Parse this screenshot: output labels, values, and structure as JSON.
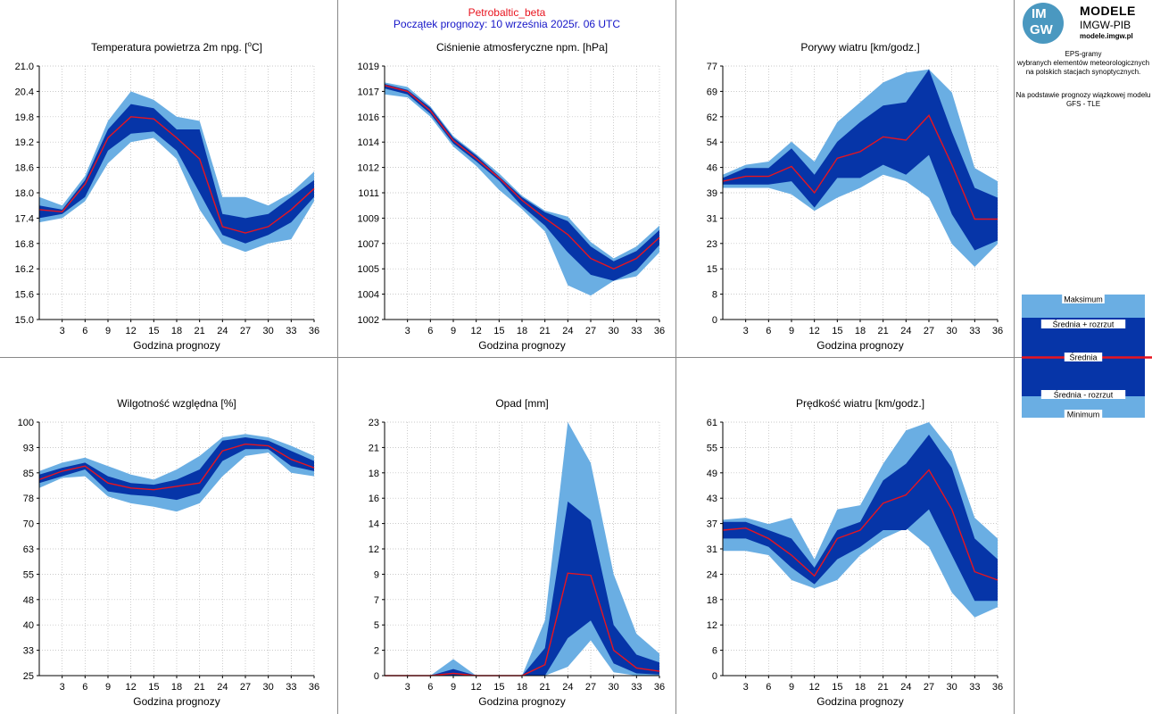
{
  "header": {
    "station": "Petrobaltic_beta",
    "run": "Początek prognozy: 10 września 2025r. 06 UTC"
  },
  "logo": {
    "mark_top": "IM",
    "mark_bottom": "GW",
    "title": "MODELE",
    "subtitle": "IMGW-PIB",
    "site": "modele.imgw.pl"
  },
  "side_info": {
    "lines1": [
      "EPS-gramy",
      "wybranych elementów meteorologicznych",
      "na polskich stacjach  synoptycznych."
    ],
    "lines2": [
      "Na podstawie prognozy wiązkowej modelu",
      "GFS - TLE"
    ]
  },
  "legend": {
    "max": "Maksimum",
    "mean_plus": "Średnia + rozrzut",
    "mean": "Średnia",
    "mean_minus": "Średnia - rozrzut",
    "min": "Minimum"
  },
  "colors": {
    "outer_band": "#6aaee3",
    "inner_band": "#0635a8",
    "mean_line": "#e8141f",
    "grid": "#b8b8b8",
    "divider": "#888888"
  },
  "chart_data": [
    {
      "type": "area",
      "title": "Temperatura powietrza 2m npg. [°C]",
      "xlabel": "Godzina prognozy",
      "x": [
        0,
        3,
        6,
        9,
        12,
        15,
        18,
        21,
        24,
        27,
        30,
        33,
        36
      ],
      "xticks": [
        "3",
        "6",
        "9",
        "12",
        "15",
        "18",
        "21",
        "24",
        "27",
        "30",
        "33",
        "36"
      ],
      "ylim": [
        15.0,
        21.0
      ],
      "yticks": [
        "15.0",
        "15.6",
        "16.2",
        "16.8",
        "17.4",
        "18.0",
        "18.6",
        "19.2",
        "19.8",
        "20.4",
        "21.0"
      ],
      "max": [
        17.9,
        17.7,
        18.4,
        19.7,
        20.4,
        20.2,
        19.8,
        19.7,
        17.9,
        17.9,
        17.7,
        18.0,
        18.5
      ],
      "mean_plus": [
        17.7,
        17.6,
        18.3,
        19.5,
        20.1,
        20.0,
        19.5,
        19.5,
        17.5,
        17.4,
        17.5,
        17.9,
        18.3
      ],
      "mean": [
        17.6,
        17.55,
        18.2,
        19.3,
        19.8,
        19.75,
        19.3,
        18.8,
        17.2,
        17.05,
        17.2,
        17.6,
        18.1
      ],
      "mean_minus": [
        17.4,
        17.5,
        17.9,
        19.0,
        19.4,
        19.45,
        19.0,
        18.0,
        17.0,
        16.8,
        17.0,
        17.3,
        17.9
      ],
      "min": [
        17.3,
        17.4,
        17.8,
        18.7,
        19.2,
        19.3,
        18.8,
        17.6,
        16.8,
        16.6,
        16.8,
        16.9,
        17.8
      ]
    },
    {
      "type": "area",
      "title": "Ciśnienie atmosferyczne npm. [hPa]",
      "xlabel": "Godzina prognozy",
      "x": [
        0,
        3,
        6,
        9,
        12,
        15,
        18,
        21,
        24,
        27,
        30,
        33,
        36
      ],
      "xticks": [
        "3",
        "6",
        "9",
        "12",
        "15",
        "18",
        "21",
        "24",
        "27",
        "30",
        "33",
        "36"
      ],
      "ylim": [
        1002,
        1019
      ],
      "yticks": [
        "1002",
        "1004",
        "1005",
        "1007",
        "1009",
        "1011",
        "1012",
        "1014",
        "1016",
        "1017",
        "1019"
      ],
      "max": [
        1017.9,
        1017.6,
        1016.3,
        1014.3,
        1013.1,
        1011.8,
        1010.3,
        1009.3,
        1008.9,
        1007.2,
        1006.1,
        1006.9,
        1008.3
      ],
      "mean_plus": [
        1017.8,
        1017.4,
        1016.2,
        1014.2,
        1013.0,
        1011.6,
        1010.2,
        1009.2,
        1008.6,
        1006.9,
        1005.9,
        1006.6,
        1008.0
      ],
      "mean": [
        1017.7,
        1017.3,
        1016.0,
        1014.0,
        1012.8,
        1011.5,
        1010.0,
        1008.8,
        1007.7,
        1006.1,
        1005.4,
        1006.1,
        1007.5
      ],
      "mean_minus": [
        1017.5,
        1017.1,
        1015.8,
        1013.8,
        1012.6,
        1011.3,
        1009.6,
        1008.3,
        1006.5,
        1005.0,
        1004.6,
        1005.3,
        1007.0
      ],
      "min": [
        1017.1,
        1016.9,
        1015.6,
        1013.6,
        1012.3,
        1010.7,
        1009.4,
        1007.9,
        1004.3,
        1003.6,
        1004.6,
        1004.9,
        1006.5
      ]
    },
    {
      "type": "area",
      "title": "Porywy wiatru [km/godz.]",
      "xlabel": "Godzina prognozy",
      "x": [
        0,
        3,
        6,
        9,
        12,
        15,
        18,
        21,
        24,
        27,
        30,
        33,
        36
      ],
      "xticks": [
        "3",
        "6",
        "9",
        "12",
        "15",
        "18",
        "21",
        "24",
        "27",
        "30",
        "33",
        "36"
      ],
      "ylim": [
        0,
        77
      ],
      "yticks": [
        "0",
        "8",
        "15",
        "23",
        "31",
        "39",
        "46",
        "54",
        "62",
        "69",
        "77"
      ],
      "max": [
        44,
        47,
        48,
        54,
        48,
        60,
        66,
        72,
        75,
        76,
        69,
        46,
        42
      ],
      "mean_plus": [
        43,
        46,
        46,
        52,
        44,
        54,
        60,
        65,
        66,
        76,
        57,
        40,
        37
      ],
      "mean": [
        42,
        43.5,
        43.5,
        46.5,
        38.5,
        49,
        51,
        55.5,
        54.5,
        62,
        47,
        30.5,
        30.5
      ],
      "mean_minus": [
        41,
        41,
        41,
        42,
        34,
        43,
        43,
        47,
        44,
        50,
        32,
        21,
        24
      ],
      "min": [
        40,
        40,
        40,
        38,
        33,
        37,
        40,
        44,
        42,
        37,
        23,
        16,
        23
      ]
    },
    {
      "type": "area",
      "title": "Wilgotność względna [%]",
      "xlabel": "Godzina prognozy",
      "x": [
        0,
        3,
        6,
        9,
        12,
        15,
        18,
        21,
        24,
        27,
        30,
        33,
        36
      ],
      "xticks": [
        "3",
        "6",
        "9",
        "12",
        "15",
        "18",
        "21",
        "24",
        "27",
        "30",
        "33",
        "36"
      ],
      "ylim": [
        25,
        100
      ],
      "yticks": [
        "25",
        "33",
        "40",
        "48",
        "55",
        "63",
        "70",
        "78",
        "85",
        "93",
        "100"
      ],
      "max": [
        85.5,
        88,
        89.5,
        87,
        84.5,
        83,
        86,
        90,
        95.5,
        96.5,
        95.5,
        93,
        90
      ],
      "mean_plus": [
        84.5,
        86.5,
        88,
        84,
        82,
        81.5,
        83,
        86,
        94.5,
        95.5,
        94.5,
        91.5,
        88.5
      ],
      "mean": [
        83,
        85.5,
        87,
        82,
        80.5,
        80,
        81,
        82,
        91.5,
        93.5,
        93,
        89,
        86.5
      ],
      "mean_minus": [
        82,
        84,
        86,
        79.5,
        78.5,
        78,
        77,
        79,
        88.5,
        92,
        92,
        87,
        85.5
      ],
      "min": [
        80.5,
        83.5,
        84,
        78,
        76,
        75,
        73.5,
        76,
        84,
        90,
        91,
        85,
        84
      ]
    },
    {
      "type": "area",
      "title": "Opad [mm]",
      "xlabel": "Godzina prognozy",
      "x": [
        0,
        3,
        6,
        9,
        12,
        15,
        18,
        21,
        24,
        27,
        30,
        33,
        36
      ],
      "xticks": [
        "3",
        "6",
        "9",
        "12",
        "15",
        "18",
        "21",
        "24",
        "27",
        "30",
        "33",
        "36"
      ],
      "ylim": [
        0,
        23
      ],
      "yticks": [
        "0",
        "2",
        "5",
        "7",
        "9",
        "12",
        "14",
        "16",
        "18",
        "21",
        "23"
      ],
      "max": [
        0,
        0,
        0,
        1.5,
        0,
        0,
        0,
        5.0,
        23.0,
        19.3,
        9.2,
        3.8,
        2.0
      ],
      "mean_plus": [
        0,
        0,
        0,
        0.6,
        0,
        0,
        0,
        2.5,
        15.8,
        14.1,
        4.6,
        1.9,
        1.2
      ],
      "mean": [
        0,
        0,
        0,
        0.2,
        0,
        0,
        0,
        1.0,
        9.3,
        9.1,
        2.3,
        0.7,
        0.4
      ],
      "mean_minus": [
        0,
        0,
        0,
        0,
        0,
        0,
        0,
        0,
        3.4,
        5.0,
        1.1,
        0.2,
        0.1
      ],
      "min": [
        0,
        0,
        0,
        0,
        0,
        0,
        0,
        0,
        0.8,
        3.2,
        0.3,
        0,
        0
      ]
    },
    {
      "type": "area",
      "title": "Prędkość wiatru [km/godz.]",
      "xlabel": "Godzina prognozy",
      "x": [
        0,
        3,
        6,
        9,
        12,
        15,
        18,
        21,
        24,
        27,
        30,
        33,
        36
      ],
      "xticks": [
        "3",
        "6",
        "9",
        "12",
        "15",
        "18",
        "21",
        "24",
        "27",
        "30",
        "33",
        "36"
      ],
      "ylim": [
        0,
        61
      ],
      "yticks": [
        "0",
        "6",
        "12",
        "18",
        "24",
        "31",
        "37",
        "43",
        "49",
        "55",
        "61"
      ],
      "max": [
        37.5,
        38,
        36.5,
        38,
        28,
        40,
        41,
        51,
        59,
        61,
        54,
        38,
        33
      ],
      "mean_plus": [
        37,
        37,
        35,
        33,
        26,
        35,
        37,
        47,
        51,
        58,
        50,
        33,
        28
      ],
      "mean": [
        35,
        35.5,
        33,
        29,
        24,
        33,
        35,
        41.5,
        43.5,
        49.5,
        40,
        25,
        23
      ],
      "mean_minus": [
        33,
        33,
        31,
        26,
        22,
        28,
        31,
        35,
        35,
        40,
        29,
        18,
        18
      ],
      "min": [
        30,
        30,
        29,
        23,
        21,
        23,
        29,
        33,
        35.5,
        31,
        20,
        14,
        16.5
      ]
    }
  ]
}
